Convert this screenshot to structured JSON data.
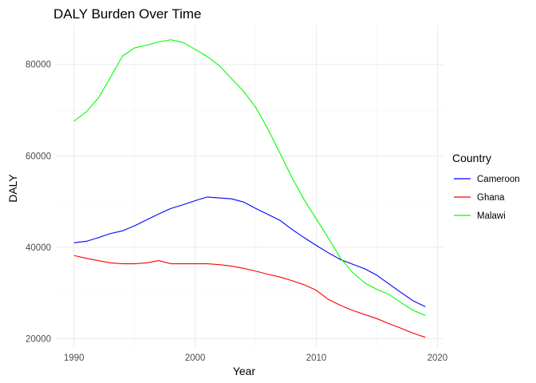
{
  "chart_data": {
    "type": "line",
    "title": "DALY Burden Over Time",
    "xlabel": "Year",
    "ylabel": "DALY",
    "xlim": [
      1988.5,
      2020.5
    ],
    "ylim": [
      18000,
      88500
    ],
    "x_ticks": [
      1990,
      2000,
      2010,
      2020
    ],
    "y_ticks": [
      20000,
      40000,
      60000,
      80000
    ],
    "grid": true,
    "legend": {
      "title": "Country",
      "position": "right"
    },
    "x": [
      1990,
      1991,
      1992,
      1993,
      1994,
      1995,
      1996,
      1997,
      1998,
      1999,
      2000,
      2001,
      2002,
      2003,
      2004,
      2005,
      2006,
      2007,
      2008,
      2009,
      2010,
      2011,
      2012,
      2013,
      2014,
      2015,
      2016,
      2017,
      2018,
      2019
    ],
    "series": [
      {
        "name": "Cameroon",
        "color": "#0000ff",
        "values": [
          41000,
          41300,
          42100,
          43000,
          43600,
          44700,
          46000,
          47300,
          48500,
          49300,
          50200,
          51000,
          50800,
          50600,
          49900,
          48500,
          47200,
          45900,
          43900,
          42100,
          40400,
          38800,
          37300,
          36300,
          35300,
          33900,
          32000,
          30100,
          28300,
          27000
        ]
      },
      {
        "name": "Ghana",
        "color": "#ff0000",
        "values": [
          38200,
          37600,
          37100,
          36600,
          36400,
          36400,
          36600,
          37100,
          36400,
          36400,
          36400,
          36400,
          36200,
          35900,
          35400,
          34800,
          34100,
          33500,
          32700,
          31800,
          30600,
          28600,
          27300,
          26200,
          25300,
          24400,
          23300,
          22300,
          21200,
          20300
        ]
      },
      {
        "name": "Malawi",
        "color": "#00ff00",
        "values": [
          67600,
          69600,
          72600,
          77100,
          81800,
          83600,
          84200,
          84900,
          85400,
          84800,
          83300,
          81700,
          79700,
          76900,
          74100,
          70600,
          65900,
          60600,
          55200,
          50400,
          46200,
          42000,
          37600,
          34500,
          32200,
          30800,
          29700,
          27900,
          26200,
          25100
        ]
      }
    ]
  }
}
